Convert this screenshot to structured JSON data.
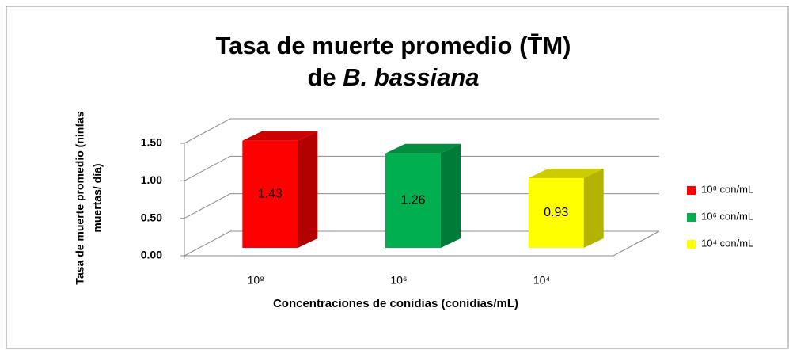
{
  "chart_data": {
    "type": "bar3d",
    "title": [
      "Tasa de muerte promedio (T̄M)",
      "de",
      "B. bassiana"
    ],
    "y_label": [
      "Tasa de muerte promedio (ninfas",
      "muertas/ día)"
    ],
    "x_label": "Concentraciones de conidias (conidias/mL)",
    "categories": [
      "10⁸",
      "10⁶",
      "10⁴"
    ],
    "values": [
      1.43,
      1.26,
      0.93
    ],
    "colors": [
      "#ff0000",
      "#00b050",
      "#ffff00"
    ],
    "legend": [
      "10⁸ con/mL",
      "10⁶ con/mL",
      "10⁴ con/mL"
    ],
    "legend_position": "right",
    "ylim": [
      0,
      1.5
    ],
    "yticks": [
      {
        "value": 0,
        "label": "0.00"
      },
      {
        "value": 0.5,
        "label": "0.50"
      },
      {
        "value": 1,
        "label": "1.00"
      },
      {
        "value": 1.5,
        "label": "1.50"
      }
    ],
    "grid": true
  }
}
